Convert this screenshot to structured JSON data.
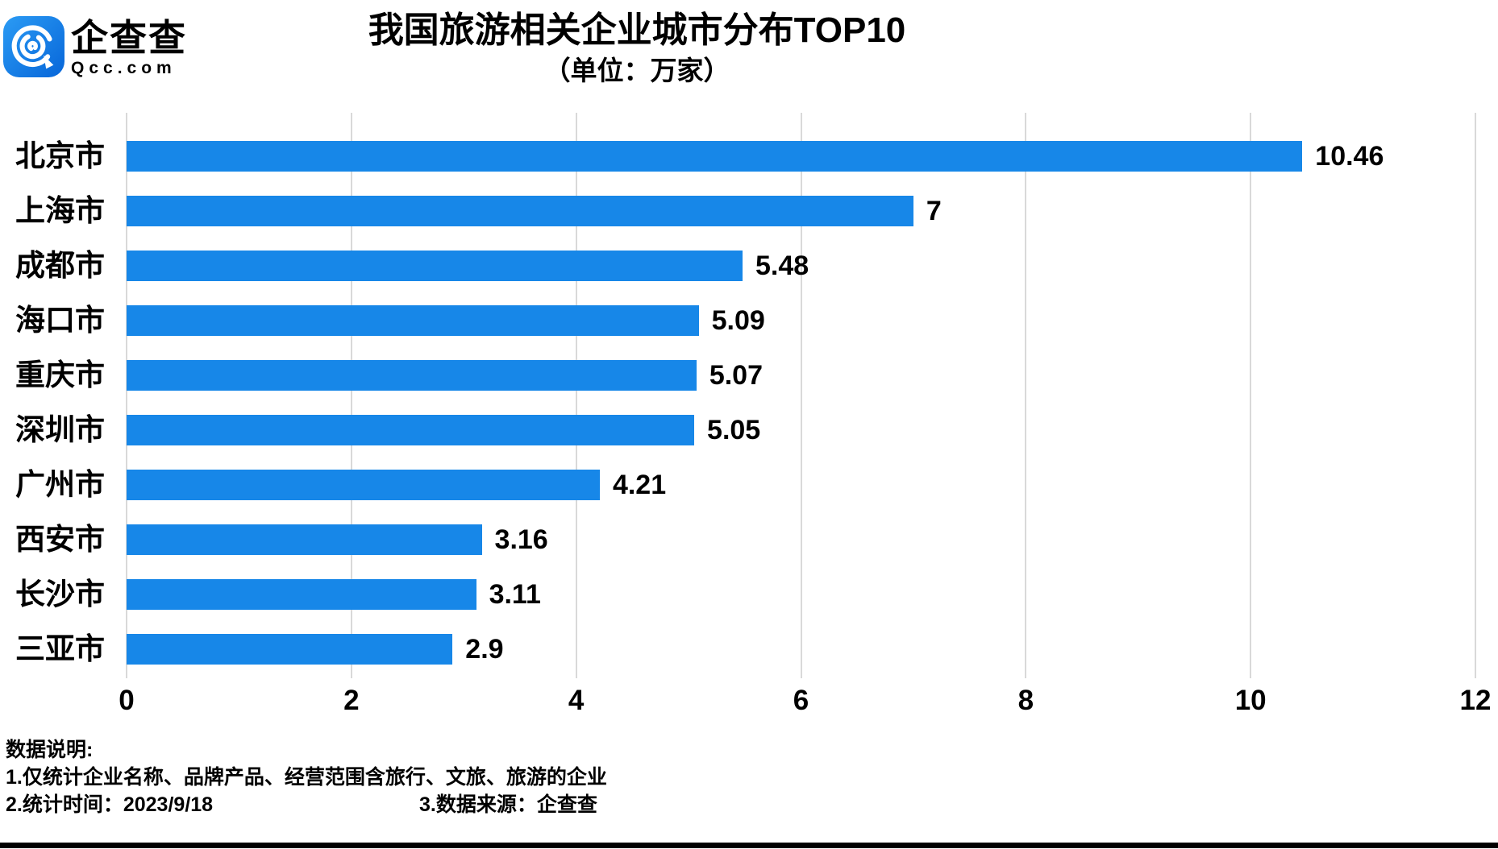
{
  "logo": {
    "name": "企查查",
    "domain": "Qcc.com",
    "icon": "qcc-magnifier-q-icon",
    "icon_color_top": "#2b9bf4",
    "icon_color_bottom": "#0766d9"
  },
  "chart_data": {
    "type": "bar",
    "orientation": "horizontal",
    "title": "我国旅游相关企业城市分布TOP10",
    "subtitle": "（单位：万家）",
    "unit": "万家",
    "categories": [
      "北京市",
      "上海市",
      "成都市",
      "海口市",
      "重庆市",
      "深圳市",
      "广州市",
      "西安市",
      "长沙市",
      "三亚市"
    ],
    "values": [
      10.46,
      7,
      5.48,
      5.09,
      5.07,
      5.05,
      4.21,
      3.16,
      3.11,
      2.9
    ],
    "value_labels": [
      "10.46",
      "7",
      "5.48",
      "5.09",
      "5.07",
      "5.05",
      "4.21",
      "3.16",
      "3.11",
      "2.9"
    ],
    "xlim": [
      0,
      12
    ],
    "x_ticks": [
      0,
      2,
      4,
      6,
      8,
      10,
      12
    ],
    "grid": true,
    "legend": "none",
    "bar_color": "#1787e8",
    "gridline_color": "#d9d9d9"
  },
  "footer": {
    "heading": "数据说明:",
    "note1": "1.仅统计企业名称、品牌产品、经营范围含旅行、文旅、旅游的企业",
    "note2": "2.统计时间：2023/9/18",
    "note3": "3.数据来源：企查查"
  }
}
